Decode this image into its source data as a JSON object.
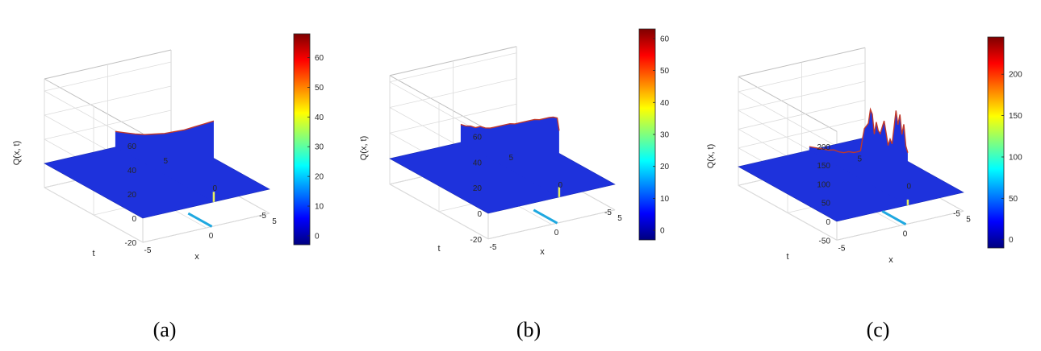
{
  "colormap": [
    "#00007f",
    "#0000ff",
    "#007fff",
    "#00ffff",
    "#7fff7f",
    "#ffff00",
    "#ff7f00",
    "#ff0000",
    "#7f0000"
  ],
  "surface_color": "#1e32dc",
  "chart_data": [
    {
      "type": "surface3d",
      "caption": "(a)",
      "xlabel": "x",
      "ylabel": "t",
      "zlabel": "Q(x, t)",
      "xlim": [
        -5,
        5
      ],
      "ylim": [
        -5,
        5
      ],
      "zlim": [
        -20,
        70
      ],
      "xticks": [
        -5,
        0,
        5
      ],
      "yticks": [
        -5,
        0,
        5
      ],
      "zticks": [
        -20,
        0,
        20,
        40,
        60
      ],
      "colorbar": {
        "min": -3,
        "max": 68,
        "ticks": [
          0,
          10,
          20,
          30,
          40,
          50,
          60
        ]
      },
      "wall_x": 0.6,
      "wall_profile": [
        [
          -5,
          67
        ],
        [
          -4,
          60
        ],
        [
          -3,
          53
        ],
        [
          -2,
          46
        ],
        [
          -1,
          40
        ],
        [
          0,
          34
        ],
        [
          1,
          29
        ],
        [
          2,
          24
        ],
        [
          3,
          20
        ],
        [
          4,
          16.5
        ],
        [
          5,
          13
        ]
      ]
    },
    {
      "type": "surface3d",
      "caption": "(b)",
      "xlabel": "x",
      "ylabel": "t",
      "zlabel": "Q(x, t)",
      "xlim": [
        -5,
        5
      ],
      "ylim": [
        -5,
        5
      ],
      "zlim": [
        -20,
        65
      ],
      "xticks": [
        -5,
        0,
        5
      ],
      "yticks": [
        -5,
        0,
        5
      ],
      "zticks": [
        -20,
        0,
        20,
        40,
        60
      ],
      "colorbar": {
        "min": -3,
        "max": 63,
        "ticks": [
          0,
          10,
          20,
          30,
          40,
          50,
          60
        ]
      },
      "wall_x": 0.6,
      "wall_profile": [
        [
          -5,
          52
        ],
        [
          -4.8,
          61
        ],
        [
          -4.4,
          60
        ],
        [
          -4,
          58
        ],
        [
          -3.5,
          55
        ],
        [
          -3,
          52
        ],
        [
          -2.5,
          50
        ],
        [
          -2,
          47
        ],
        [
          -1.5,
          44
        ],
        [
          -1,
          41
        ],
        [
          -0.5,
          38
        ],
        [
          0,
          36
        ],
        [
          0.5,
          33
        ],
        [
          1,
          30
        ],
        [
          1.5,
          27
        ],
        [
          2,
          24
        ],
        [
          2.5,
          22
        ],
        [
          3,
          21
        ],
        [
          3.5,
          18
        ],
        [
          4,
          17
        ],
        [
          4.5,
          15
        ],
        [
          5,
          14
        ]
      ]
    },
    {
      "type": "surface3d",
      "caption": "(c)",
      "xlabel": "x",
      "ylabel": "t",
      "zlabel": "Q(x, t)",
      "xlim": [
        -5,
        5
      ],
      "ylim": [
        -5,
        5
      ],
      "zlim": [
        -50,
        240
      ],
      "xticks": [
        -5,
        0,
        5
      ],
      "yticks": [
        -5,
        0,
        5
      ],
      "zticks": [
        -50,
        0,
        50,
        100,
        150,
        200
      ],
      "colorbar": {
        "min": -10,
        "max": 245,
        "ticks": [
          0,
          50,
          100,
          150,
          200
        ]
      },
      "wall_x": 0.6,
      "wall_profile": [
        [
          -5,
          140
        ],
        [
          -4.8,
          155
        ],
        [
          -4.6,
          210
        ],
        [
          -4.4,
          180
        ],
        [
          -4.2,
          230
        ],
        [
          -4,
          200
        ],
        [
          -3.8,
          235
        ],
        [
          -3.6,
          185
        ],
        [
          -3.4,
          140
        ],
        [
          -3.2,
          150
        ],
        [
          -3,
          130
        ],
        [
          -2.8,
          160
        ],
        [
          -2.6,
          190
        ],
        [
          -2.4,
          170
        ],
        [
          -2.2,
          150
        ],
        [
          -2,
          155
        ],
        [
          -1.8,
          175
        ],
        [
          -1.6,
          140
        ],
        [
          -1.4,
          190
        ],
        [
          -1.2,
          200
        ],
        [
          -1,
          160
        ],
        [
          -0.8,
          150
        ],
        [
          -0.6,
          140
        ],
        [
          -0.4,
          110
        ],
        [
          -0.2,
          75
        ],
        [
          0,
          70
        ],
        [
          0.5,
          60
        ],
        [
          1,
          55
        ],
        [
          1.5,
          45
        ],
        [
          2,
          40
        ],
        [
          2.5,
          38
        ],
        [
          3,
          30
        ],
        [
          3.5,
          25
        ],
        [
          4,
          20
        ],
        [
          5,
          10
        ]
      ]
    }
  ]
}
